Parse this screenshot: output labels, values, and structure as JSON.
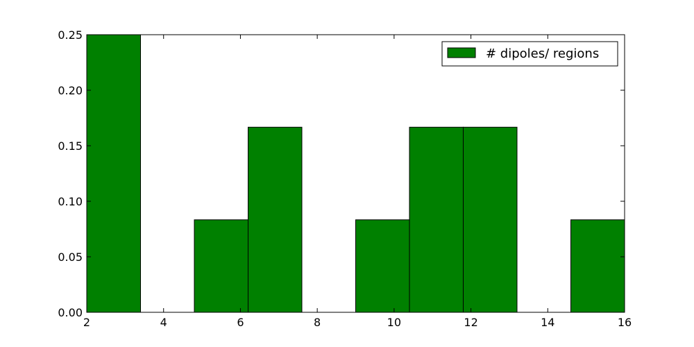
{
  "chart_data": {
    "type": "bar",
    "title": "",
    "xlabel": "",
    "ylabel": "",
    "xlim": [
      2,
      16
    ],
    "ylim": [
      0,
      0.25
    ],
    "x_ticks": [
      2,
      4,
      6,
      8,
      10,
      12,
      14,
      16
    ],
    "x_tick_labels": [
      "2",
      "4",
      "6",
      "8",
      "10",
      "12",
      "14",
      "16"
    ],
    "y_ticks": [
      0.0,
      0.05,
      0.1,
      0.15,
      0.2,
      0.25
    ],
    "y_tick_labels": [
      "0.00",
      "0.05",
      "0.10",
      "0.15",
      "0.20",
      "0.25"
    ],
    "grid": false,
    "legend_position": "top-right",
    "series": [
      {
        "name": "# dipoles/ regions",
        "color": "#008000",
        "bins": [
          {
            "x0": 2.0,
            "x1": 3.4,
            "value": 0.25
          },
          {
            "x0": 3.4,
            "x1": 4.8,
            "value": 0.0
          },
          {
            "x0": 4.8,
            "x1": 6.2,
            "value": 0.0833
          },
          {
            "x0": 6.2,
            "x1": 7.6,
            "value": 0.1667
          },
          {
            "x0": 7.6,
            "x1": 9.0,
            "value": 0.0
          },
          {
            "x0": 9.0,
            "x1": 10.4,
            "value": 0.0833
          },
          {
            "x0": 10.4,
            "x1": 11.8,
            "value": 0.1667
          },
          {
            "x0": 11.8,
            "x1": 13.2,
            "value": 0.1667
          },
          {
            "x0": 13.2,
            "x1": 14.6,
            "value": 0.0
          },
          {
            "x0": 14.6,
            "x1": 16.0,
            "value": 0.0833
          }
        ]
      }
    ]
  }
}
